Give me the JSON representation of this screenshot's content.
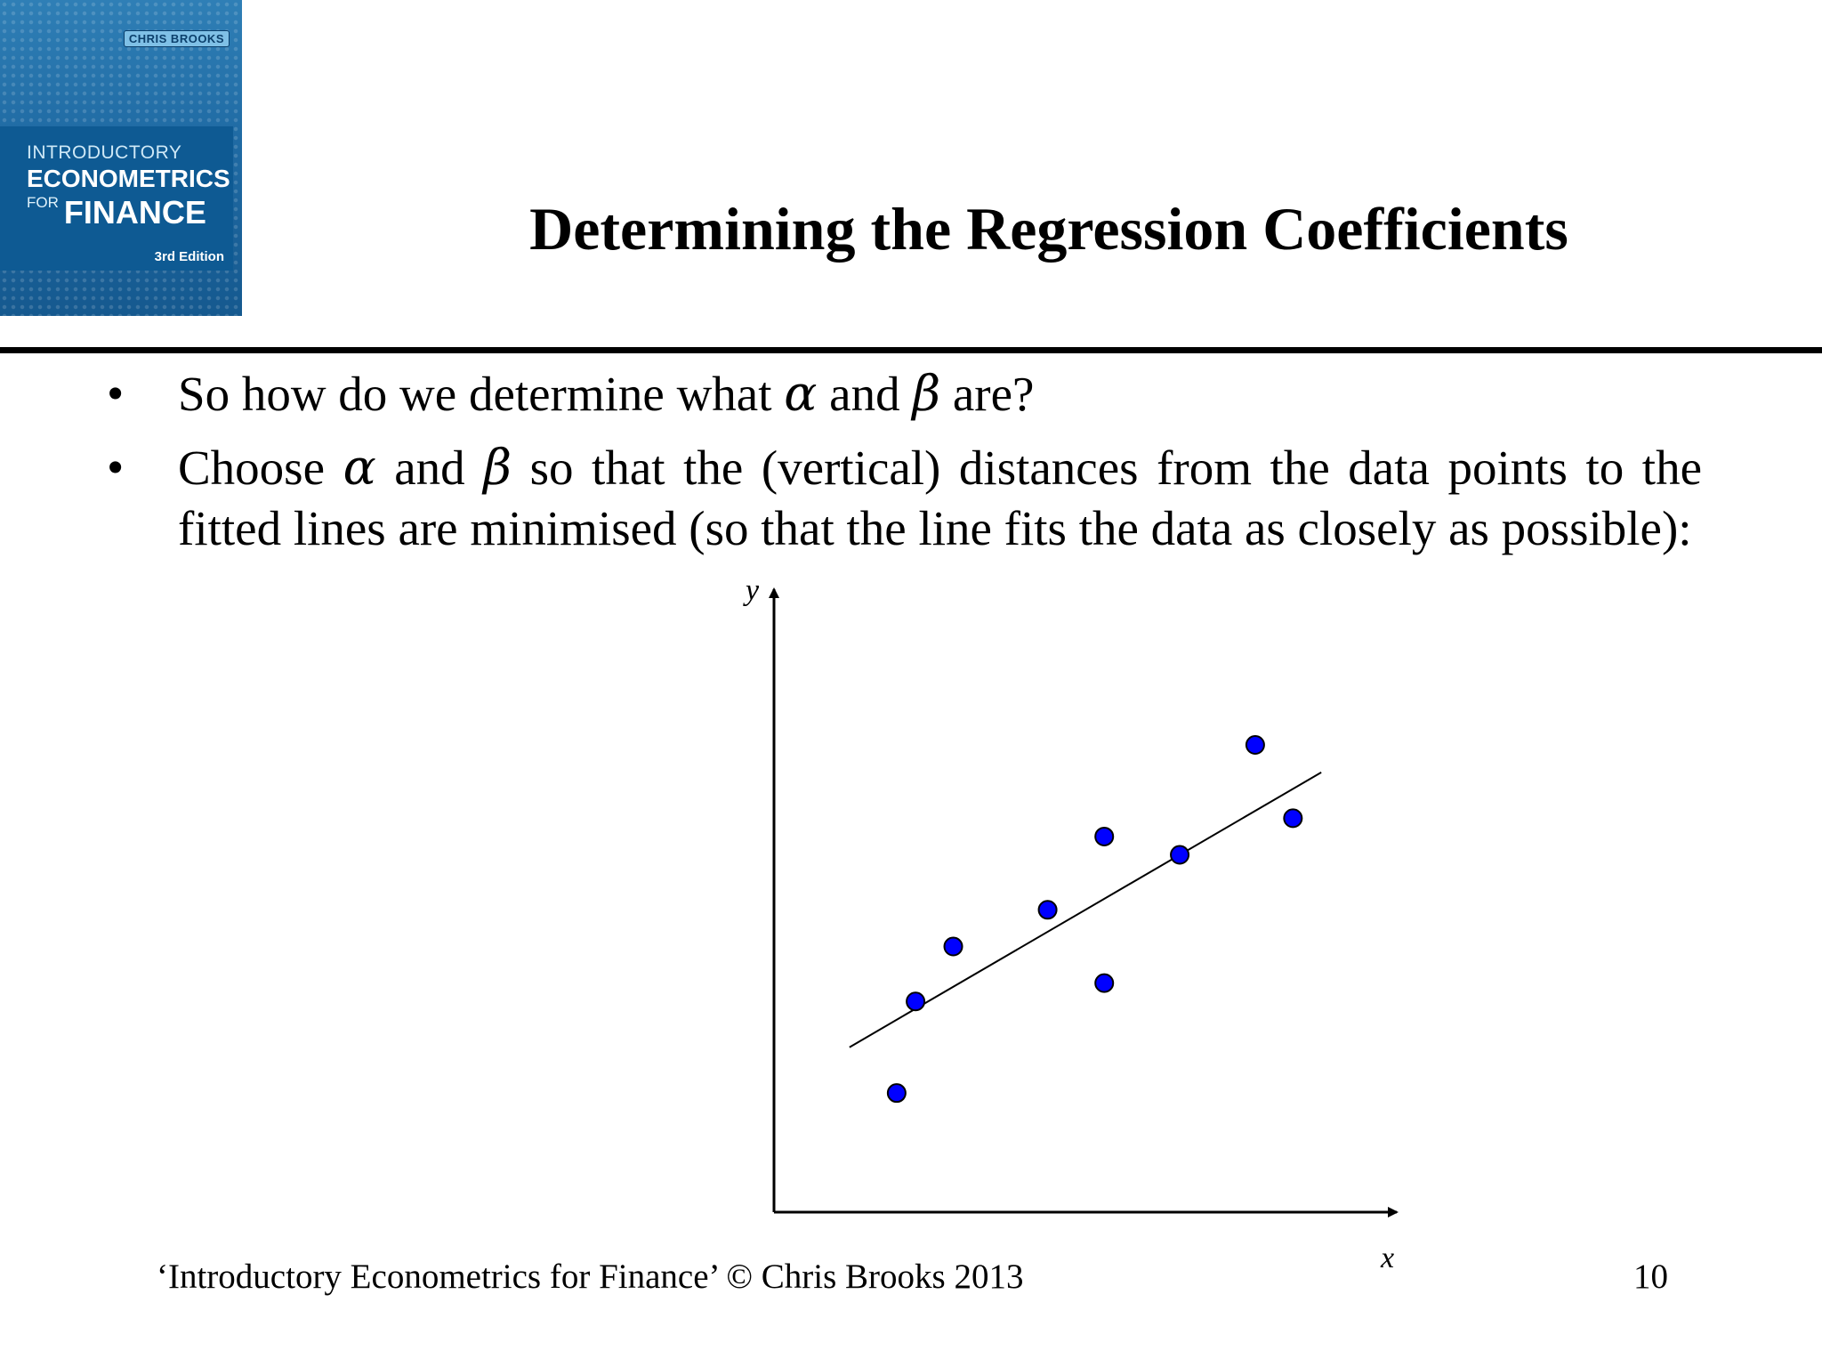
{
  "cover": {
    "author": "CHRIS BROOKS",
    "line1": "INTRODUCTORY",
    "line2": "ECONOMETRICS",
    "line3_for": "FOR",
    "line3_main": "FINANCE",
    "edition": "3rd Edition",
    "colors": {
      "background": "#1f6aa3",
      "band": "#0e5a93"
    }
  },
  "title": "Determining the Regression Coefficients",
  "bullets": [
    {
      "marker": "•",
      "parts": [
        "So how do we determine what ",
        "α",
        " and ",
        "β",
        " are?"
      ]
    },
    {
      "marker": "•",
      "parts": [
        "Choose ",
        "α",
        " and ",
        "β",
        " so that the (vertical) distances from the data points to the fitted lines are minimised (so that the line fits the data as closely as possible):"
      ]
    }
  ],
  "chart_data": {
    "type": "scatter",
    "xlabel": "x",
    "ylabel": "y",
    "points": [
      {
        "x": 1.3,
        "y": 1.3
      },
      {
        "x": 1.5,
        "y": 2.3
      },
      {
        "x": 1.9,
        "y": 2.9
      },
      {
        "x": 2.9,
        "y": 3.3
      },
      {
        "x": 3.5,
        "y": 2.5
      },
      {
        "x": 3.5,
        "y": 4.1
      },
      {
        "x": 4.3,
        "y": 3.9
      },
      {
        "x": 5.1,
        "y": 5.1
      },
      {
        "x": 5.5,
        "y": 4.3
      }
    ],
    "fitted_line": {
      "x0": 0.8,
      "y0": 1.8,
      "x1": 5.8,
      "y1": 4.8
    },
    "xlim": [
      0,
      6.6
    ],
    "ylim": [
      0,
      6.8
    ],
    "point_color": "#0000ff",
    "grid": false
  },
  "footer": {
    "copyright": "‘Introductory Econometrics for Finance’ © Chris Brooks 2013",
    "page_number": "10"
  }
}
